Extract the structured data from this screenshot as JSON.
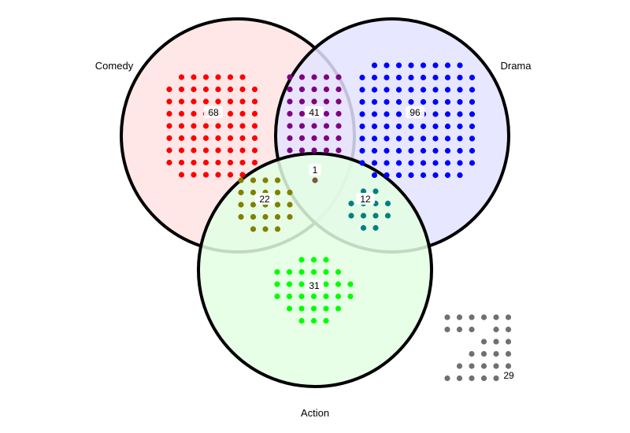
{
  "sets": [
    {
      "key": "comedy",
      "label": "Comedy",
      "fill": "#ffe3e3"
    },
    {
      "key": "drama",
      "label": "Drama",
      "fill": "#e3e3ff"
    },
    {
      "key": "action",
      "label": "Action",
      "fill": "#e3ffe3"
    }
  ],
  "regions": [
    {
      "key": "comedy_only",
      "count": "68",
      "color": "#ff0000"
    },
    {
      "key": "drama_only",
      "count": "96",
      "color": "#0000ff"
    },
    {
      "key": "action_only",
      "count": "31",
      "color": "#00ff00"
    },
    {
      "key": "comedy_drama",
      "count": "41",
      "color": "#800080"
    },
    {
      "key": "comedy_action",
      "count": "22",
      "color": "#808000"
    },
    {
      "key": "drama_action",
      "count": "12",
      "color": "#008080"
    },
    {
      "key": "all_three",
      "count": "1",
      "color": "#7b5a3c"
    },
    {
      "key": "none",
      "count": "29",
      "color": "#707070"
    }
  ]
}
